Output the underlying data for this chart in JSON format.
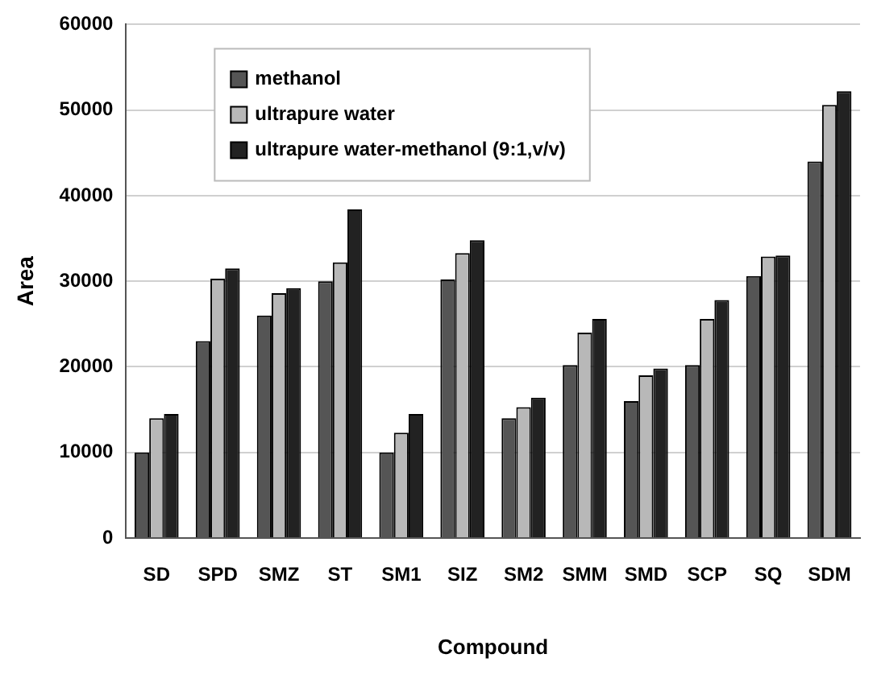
{
  "chart_data": {
    "type": "bar",
    "xlabel": "Compound",
    "ylabel": "Area",
    "categories": [
      "SD",
      "SPD",
      "SMZ",
      "ST",
      "SM1",
      "SIZ",
      "SM2",
      "SMM",
      "SMD",
      "SCP",
      "SQ",
      "SDM"
    ],
    "series": [
      {
        "name": "methanol",
        "color": "#555555",
        "values": [
          10000,
          23000,
          26000,
          30000,
          10000,
          30200,
          14000,
          20200,
          16000,
          20200,
          30600,
          44000
        ]
      },
      {
        "name": "ultrapure water",
        "color": "#b8b8b8",
        "values": [
          14000,
          30300,
          28600,
          32200,
          12300,
          33300,
          15300,
          24000,
          19000,
          25600,
          32900,
          50600
        ]
      },
      {
        "name": "ultrapure water-methanol (9:1,v/v)",
        "color": "#222222",
        "values": [
          14500,
          31500,
          29200,
          38400,
          14500,
          34800,
          16400,
          25600,
          19800,
          27800,
          33000,
          52200
        ]
      }
    ],
    "ylim": [
      0,
      60000
    ],
    "yticks": [
      0,
      10000,
      20000,
      30000,
      40000,
      50000,
      60000
    ],
    "grid": "y",
    "legend": "top left"
  }
}
